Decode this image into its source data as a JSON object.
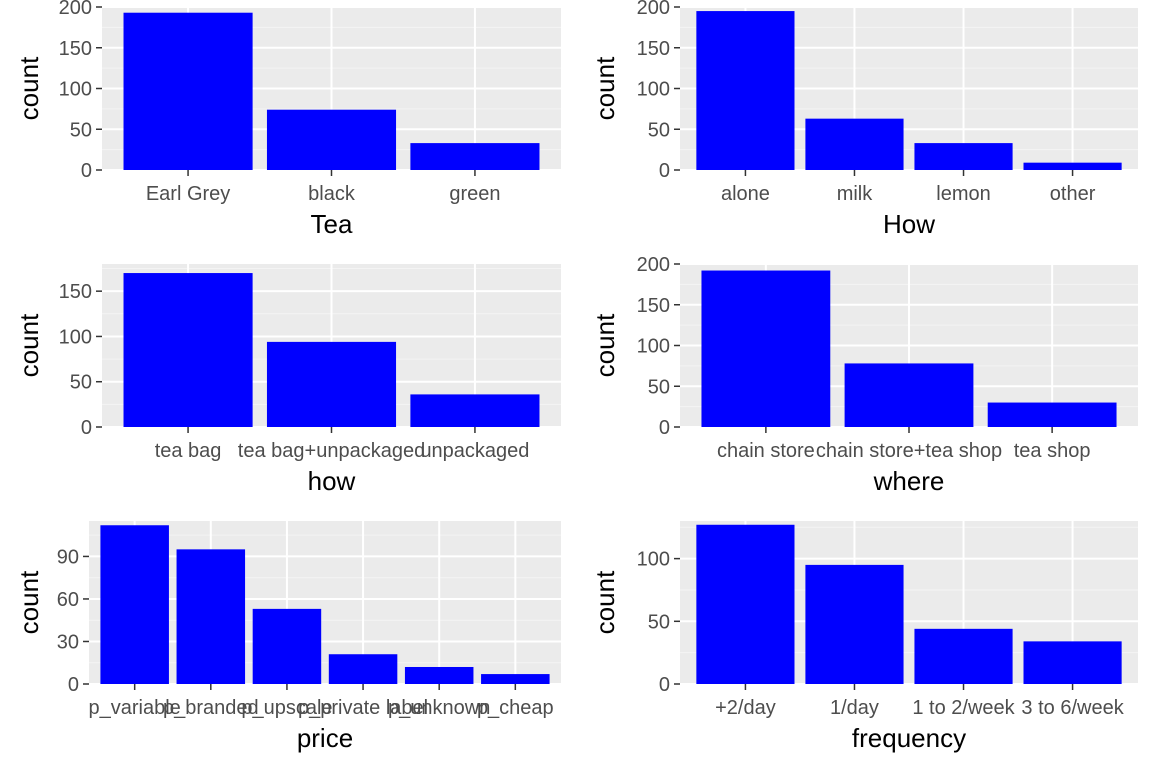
{
  "style": {
    "panel_bg": "#ebebeb",
    "grid_major": "#ffffff",
    "grid_minor": "#f4f4f4",
    "bar_color": "#0000ff",
    "tick_color": "#333333",
    "text_color": "#4d4d4d"
  },
  "chart_data": [
    {
      "type": "bar",
      "xlabel": "Tea",
      "ylabel": "count",
      "categories": [
        "Earl Grey",
        "black",
        "green"
      ],
      "values": [
        193,
        74,
        33
      ],
      "ylim": [
        0,
        200
      ],
      "yticks": [
        0,
        50,
        100,
        150,
        200
      ],
      "grid": true
    },
    {
      "type": "bar",
      "xlabel": "How",
      "ylabel": "count",
      "categories": [
        "alone",
        "milk",
        "lemon",
        "other"
      ],
      "values": [
        195,
        63,
        33,
        9
      ],
      "ylim": [
        0,
        200
      ],
      "yticks": [
        0,
        50,
        100,
        150,
        200
      ],
      "grid": true
    },
    {
      "type": "bar",
      "xlabel": "how",
      "ylabel": "count",
      "categories": [
        "tea bag",
        "tea bag+unpackaged",
        "unpackaged"
      ],
      "values": [
        170,
        94,
        36
      ],
      "ylim": [
        0,
        180
      ],
      "yticks": [
        0,
        50,
        100,
        150
      ],
      "grid": true
    },
    {
      "type": "bar",
      "xlabel": "where",
      "ylabel": "count",
      "categories": [
        "chain store",
        "chain store+tea shop",
        "tea shop"
      ],
      "values": [
        192,
        78,
        30
      ],
      "ylim": [
        0,
        200
      ],
      "yticks": [
        0,
        50,
        100,
        150,
        200
      ],
      "grid": true
    },
    {
      "type": "bar",
      "xlabel": "price",
      "ylabel": "count",
      "categories": [
        "p_variable",
        "p_branded",
        "p_upscale",
        "p_private label",
        "p_unknown",
        "p_cheap"
      ],
      "values": [
        112,
        95,
        53,
        21,
        12,
        7
      ],
      "ylim": [
        0,
        115
      ],
      "yticks": [
        0,
        30,
        60,
        90
      ],
      "grid": true
    },
    {
      "type": "bar",
      "xlabel": "frequency",
      "ylabel": "count",
      "categories": [
        "+2/day",
        "1/day",
        "1 to 2/week",
        "3 to 6/week"
      ],
      "values": [
        127,
        95,
        44,
        34
      ],
      "ylim": [
        0,
        130
      ],
      "yticks": [
        0,
        50,
        100
      ],
      "grid": true
    }
  ]
}
